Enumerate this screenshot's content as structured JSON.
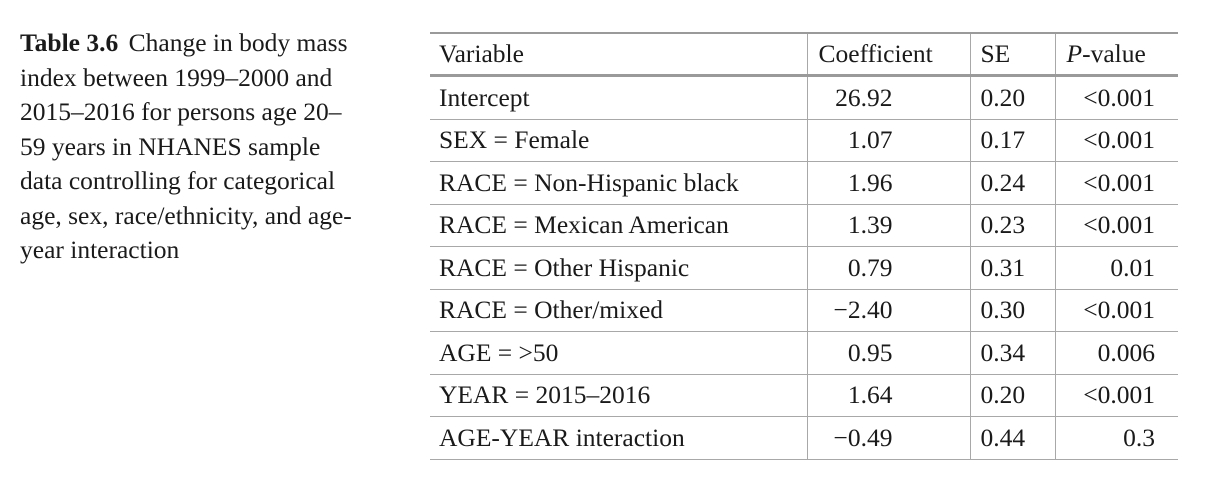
{
  "caption": {
    "label": "Table 3.6",
    "text": "Change in body mass index between 1999–2000 and 2015–2016 for persons age 20–59 years in NHANES sample data controlling for categorical age, sex, race/ethnicity, and age-year interaction"
  },
  "table": {
    "headers": {
      "variable": "Variable",
      "coefficient": "Coefficient",
      "se": "SE",
      "p_italic": "P",
      "p_rest": "-value"
    },
    "rows": [
      {
        "variable": "Intercept",
        "coefficient": "26.92",
        "se": "0.20",
        "p": "<0.001"
      },
      {
        "variable": "SEX = Female",
        "coefficient": "1.07",
        "se": "0.17",
        "p": "<0.001"
      },
      {
        "variable": "RACE = Non-Hispanic black",
        "coefficient": "1.96",
        "se": "0.24",
        "p": "<0.001"
      },
      {
        "variable": "RACE = Mexican American",
        "coefficient": "1.39",
        "se": "0.23",
        "p": "<0.001"
      },
      {
        "variable": "RACE = Other Hispanic",
        "coefficient": "0.79",
        "se": "0.31",
        "p": "0.01"
      },
      {
        "variable": "RACE = Other/mixed",
        "coefficient": "−2.40",
        "se": "0.30",
        "p": "<0.001"
      },
      {
        "variable": "AGE = >50",
        "coefficient": "0.95",
        "se": "0.34",
        "p": "0.006"
      },
      {
        "variable": "YEAR = 2015–2016",
        "coefficient": "1.64",
        "se": "0.20",
        "p": "<0.001"
      },
      {
        "variable": "AGE-YEAR interaction",
        "coefficient": "−0.49",
        "se": "0.44",
        "p": "0.3"
      }
    ]
  }
}
